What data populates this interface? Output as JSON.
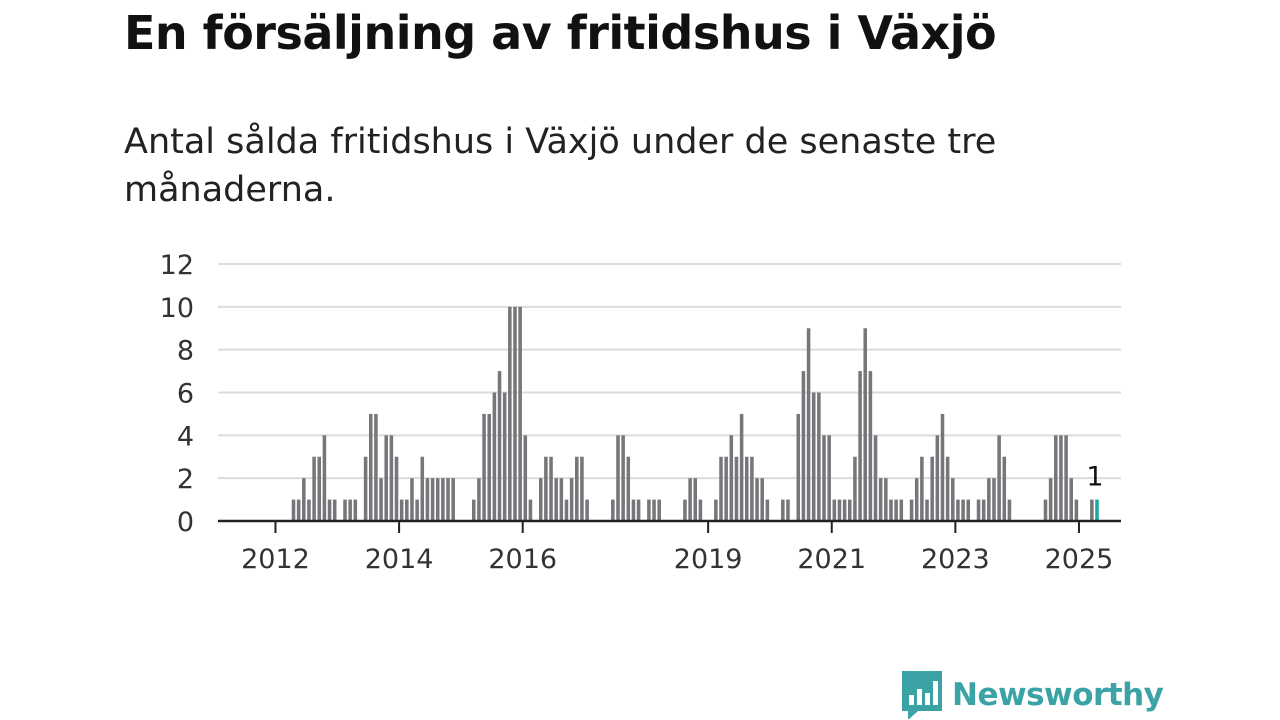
{
  "header": {
    "title": "En försäljning av fritidshus i Växjö",
    "subtitle": "Antal sålda fritidshus i Växjö under de senaste tre månaderna."
  },
  "brand": {
    "name": "Newsworthy",
    "icon": "newsworthy-logo-icon",
    "color": "#3ba3a6"
  },
  "colors": {
    "bar": "#77777b",
    "highlight": "#1fa6a3",
    "grid": "#dcdcdc",
    "axis": "#222222"
  },
  "chart_data": {
    "type": "bar",
    "x_unit": "month",
    "x_start": "2011-06",
    "x_end": "2025-04",
    "x_tick_labels": [
      "2012",
      "2014",
      "2016",
      "2019",
      "2021",
      "2023",
      "2025"
    ],
    "ylim": [
      0,
      12
    ],
    "y_ticks": [
      0,
      2,
      4,
      6,
      8,
      10,
      12
    ],
    "grid": true,
    "series": [
      {
        "points": [
          [
            "2012-04",
            1
          ],
          [
            "2012-05",
            1
          ],
          [
            "2012-06",
            2
          ],
          [
            "2012-07",
            1
          ],
          [
            "2012-08",
            3
          ],
          [
            "2012-09",
            3
          ],
          [
            "2012-10",
            4
          ],
          [
            "2012-11",
            1
          ],
          [
            "2012-12",
            1
          ],
          [
            "2013-02",
            1
          ],
          [
            "2013-03",
            1
          ],
          [
            "2013-04",
            1
          ],
          [
            "2013-06",
            3
          ],
          [
            "2013-07",
            5
          ],
          [
            "2013-08",
            5
          ],
          [
            "2013-09",
            2
          ],
          [
            "2013-10",
            4
          ],
          [
            "2013-11",
            4
          ],
          [
            "2013-12",
            3
          ],
          [
            "2014-01",
            1
          ],
          [
            "2014-02",
            1
          ],
          [
            "2014-03",
            2
          ],
          [
            "2014-04",
            1
          ],
          [
            "2014-05",
            3
          ],
          [
            "2014-06",
            2
          ],
          [
            "2014-07",
            2
          ],
          [
            "2014-08",
            2
          ],
          [
            "2014-09",
            2
          ],
          [
            "2014-10",
            2
          ],
          [
            "2014-11",
            2
          ],
          [
            "2015-03",
            1
          ],
          [
            "2015-04",
            2
          ],
          [
            "2015-05",
            5
          ],
          [
            "2015-06",
            5
          ],
          [
            "2015-07",
            6
          ],
          [
            "2015-08",
            7
          ],
          [
            "2015-09",
            6
          ],
          [
            "2015-10",
            10
          ],
          [
            "2015-11",
            10
          ],
          [
            "2015-12",
            10
          ],
          [
            "2016-01",
            4
          ],
          [
            "2016-02",
            1
          ],
          [
            "2016-04",
            2
          ],
          [
            "2016-05",
            3
          ],
          [
            "2016-06",
            3
          ],
          [
            "2016-07",
            2
          ],
          [
            "2016-08",
            2
          ],
          [
            "2016-09",
            1
          ],
          [
            "2016-10",
            2
          ],
          [
            "2016-11",
            3
          ],
          [
            "2016-12",
            3
          ],
          [
            "2017-01",
            1
          ],
          [
            "2017-06",
            1
          ],
          [
            "2017-07",
            4
          ],
          [
            "2017-08",
            4
          ],
          [
            "2017-09",
            3
          ],
          [
            "2017-10",
            1
          ],
          [
            "2017-11",
            1
          ],
          [
            "2018-01",
            1
          ],
          [
            "2018-02",
            1
          ],
          [
            "2018-03",
            1
          ],
          [
            "2018-08",
            1
          ],
          [
            "2018-09",
            2
          ],
          [
            "2018-10",
            2
          ],
          [
            "2018-11",
            1
          ],
          [
            "2019-02",
            1
          ],
          [
            "2019-03",
            3
          ],
          [
            "2019-04",
            3
          ],
          [
            "2019-05",
            4
          ],
          [
            "2019-06",
            3
          ],
          [
            "2019-07",
            5
          ],
          [
            "2019-08",
            3
          ],
          [
            "2019-09",
            3
          ],
          [
            "2019-10",
            2
          ],
          [
            "2019-11",
            2
          ],
          [
            "2019-12",
            1
          ],
          [
            "2020-03",
            1
          ],
          [
            "2020-04",
            1
          ],
          [
            "2020-06",
            5
          ],
          [
            "2020-07",
            7
          ],
          [
            "2020-08",
            9
          ],
          [
            "2020-09",
            6
          ],
          [
            "2020-10",
            6
          ],
          [
            "2020-11",
            4
          ],
          [
            "2020-12",
            4
          ],
          [
            "2021-01",
            1
          ],
          [
            "2021-02",
            1
          ],
          [
            "2021-03",
            1
          ],
          [
            "2021-04",
            1
          ],
          [
            "2021-05",
            3
          ],
          [
            "2021-06",
            7
          ],
          [
            "2021-07",
            9
          ],
          [
            "2021-08",
            7
          ],
          [
            "2021-09",
            4
          ],
          [
            "2021-10",
            2
          ],
          [
            "2021-11",
            2
          ],
          [
            "2021-12",
            1
          ],
          [
            "2022-01",
            1
          ],
          [
            "2022-02",
            1
          ],
          [
            "2022-04",
            1
          ],
          [
            "2022-05",
            2
          ],
          [
            "2022-06",
            3
          ],
          [
            "2022-07",
            1
          ],
          [
            "2022-08",
            3
          ],
          [
            "2022-09",
            4
          ],
          [
            "2022-10",
            5
          ],
          [
            "2022-11",
            3
          ],
          [
            "2022-12",
            2
          ],
          [
            "2023-01",
            1
          ],
          [
            "2023-02",
            1
          ],
          [
            "2023-03",
            1
          ],
          [
            "2023-05",
            1
          ],
          [
            "2023-06",
            1
          ],
          [
            "2023-07",
            2
          ],
          [
            "2023-08",
            2
          ],
          [
            "2023-09",
            4
          ],
          [
            "2023-10",
            3
          ],
          [
            "2023-11",
            1
          ],
          [
            "2024-06",
            1
          ],
          [
            "2024-07",
            2
          ],
          [
            "2024-08",
            4
          ],
          [
            "2024-09",
            4
          ],
          [
            "2024-10",
            4
          ],
          [
            "2024-11",
            2
          ],
          [
            "2024-12",
            1
          ],
          [
            "2025-03",
            1
          ],
          [
            "2025-04",
            1
          ]
        ]
      }
    ],
    "highlight": {
      "x": "2025-04",
      "value": 1,
      "label": "1"
    }
  }
}
